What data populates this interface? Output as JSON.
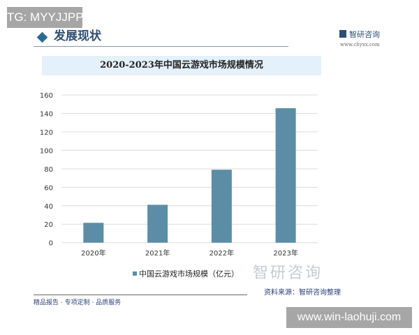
{
  "overlay_top": "TG: MYYJJPP",
  "overlay_bottom": "www.win-laohuji.com",
  "header": {
    "section_title": "发展现状",
    "brand_name": "智研咨询",
    "brand_url": "www.chyxx.com"
  },
  "footer": {
    "slogan": "精品报告 · 专项定制 · 品质服务",
    "source": "资料来源：智研咨询整理",
    "watermark": "智研咨询"
  },
  "colors": {
    "bar": "#5b8ea6",
    "title_bg": "#e4f0fa",
    "brand": "#2b4f72"
  },
  "chart_data": {
    "type": "bar",
    "title": "2020-2023年中国云游戏市场规模情况",
    "categories": [
      "2020年",
      "2021年",
      "2022年",
      "2023年"
    ],
    "series": [
      {
        "name": "中国云游戏市场规模（亿元）",
        "values": [
          21.5,
          41,
          79,
          145.6
        ]
      }
    ],
    "xlabel": "",
    "ylabel": "",
    "ylim": [
      0,
      160
    ],
    "yticks": [
      "0",
      "20",
      "40",
      "60",
      "80",
      "100",
      "120",
      "140",
      "160"
    ],
    "grid": true,
    "legend": "bottom"
  }
}
